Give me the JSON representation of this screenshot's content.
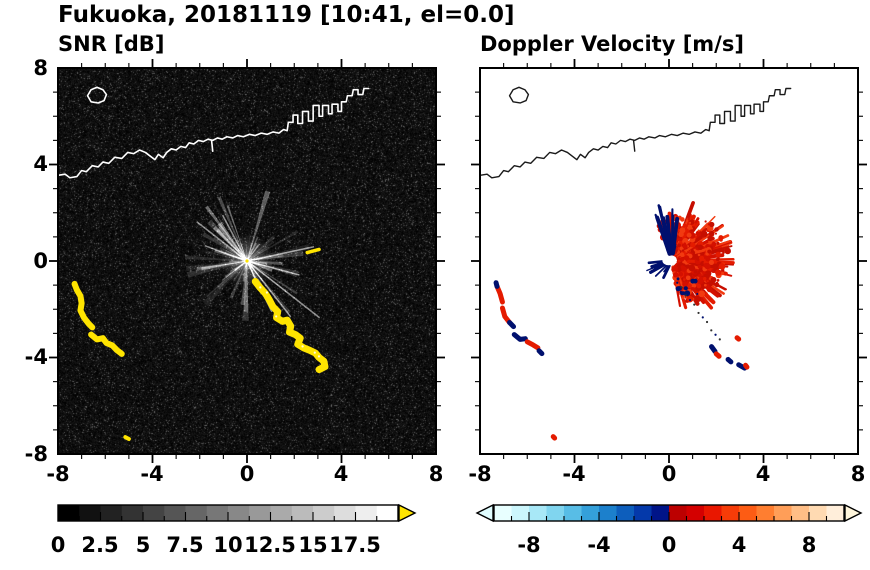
{
  "title": "Fukuoka, 20181119 [10:41, el=0.0]",
  "coastline": {
    "main": [
      [
        -8,
        3.55
      ],
      [
        -7.7,
        3.6
      ],
      [
        -7.5,
        3.45
      ],
      [
        -7.2,
        3.5
      ],
      [
        -7.0,
        3.75
      ],
      [
        -6.8,
        3.7
      ],
      [
        -6.55,
        3.95
      ],
      [
        -6.3,
        3.9
      ],
      [
        -6.1,
        4.1
      ],
      [
        -5.85,
        4.05
      ],
      [
        -5.6,
        4.3
      ],
      [
        -5.3,
        4.25
      ],
      [
        -5.05,
        4.5
      ],
      [
        -4.8,
        4.45
      ],
      [
        -4.55,
        4.6
      ],
      [
        -4.3,
        4.5
      ],
      [
        -4.1,
        4.35
      ],
      [
        -3.9,
        4.2
      ],
      [
        -3.75,
        4.42
      ],
      [
        -3.55,
        4.28
      ],
      [
        -3.4,
        4.5
      ],
      [
        -3.2,
        4.65
      ],
      [
        -3.0,
        4.6
      ],
      [
        -2.8,
        4.75
      ],
      [
        -2.6,
        4.7
      ],
      [
        -2.45,
        4.9
      ],
      [
        -2.25,
        4.85
      ],
      [
        -2.05,
        5.0
      ],
      [
        -1.85,
        4.95
      ],
      [
        -1.65,
        5.05
      ],
      [
        -1.45,
        5.0
      ],
      [
        -1.25,
        5.1
      ],
      [
        -1.05,
        5.05
      ],
      [
        -0.85,
        5.15
      ],
      [
        -0.6,
        5.1
      ],
      [
        -0.4,
        5.2
      ],
      [
        -0.15,
        5.15
      ],
      [
        0.1,
        5.25
      ],
      [
        0.35,
        5.2
      ],
      [
        0.6,
        5.3
      ],
      [
        0.85,
        5.25
      ],
      [
        1.1,
        5.35
      ],
      [
        1.35,
        5.3
      ],
      [
        1.55,
        5.45
      ],
      [
        1.7,
        5.4
      ],
      [
        1.75,
        5.75
      ],
      [
        1.95,
        5.75
      ],
      [
        1.95,
        6.05
      ],
      [
        2.15,
        6.05
      ],
      [
        2.15,
        5.7
      ],
      [
        2.35,
        5.7
      ],
      [
        2.35,
        6.2
      ],
      [
        2.6,
        6.2
      ],
      [
        2.6,
        5.8
      ],
      [
        2.8,
        5.8
      ],
      [
        2.8,
        6.45
      ],
      [
        3.05,
        6.45
      ],
      [
        3.05,
        6.0
      ],
      [
        3.2,
        6.0
      ],
      [
        3.2,
        6.45
      ],
      [
        3.45,
        6.45
      ],
      [
        3.45,
        6.1
      ],
      [
        3.6,
        6.1
      ],
      [
        3.6,
        6.5
      ],
      [
        3.85,
        6.5
      ],
      [
        3.85,
        6.2
      ],
      [
        4.0,
        6.2
      ],
      [
        4.0,
        6.6
      ],
      [
        4.2,
        6.6
      ],
      [
        4.25,
        6.85
      ],
      [
        4.45,
        6.85
      ],
      [
        4.5,
        7.1
      ],
      [
        4.7,
        7.1
      ],
      [
        4.7,
        6.9
      ],
      [
        4.9,
        6.9
      ],
      [
        4.95,
        7.15
      ],
      [
        5.15,
        7.15
      ]
    ],
    "island": [
      [
        -6.75,
        6.85
      ],
      [
        -6.6,
        7.1
      ],
      [
        -6.35,
        7.2
      ],
      [
        -6.1,
        7.1
      ],
      [
        -5.95,
        6.9
      ],
      [
        -6.05,
        6.65
      ],
      [
        -6.3,
        6.55
      ],
      [
        -6.6,
        6.6
      ]
    ],
    "stub": [
      [
        -1.5,
        5.0
      ],
      [
        -1.45,
        4.55
      ]
    ]
  },
  "chart_data": [
    {
      "type": "heatmap",
      "panel": "left",
      "title": "SNR [dB]",
      "units": "dB",
      "xlim": [
        -8,
        8
      ],
      "ylim": [
        -8,
        8
      ],
      "xticks": [
        -8,
        -4,
        0,
        4,
        8
      ],
      "yticks": [
        -8,
        -4,
        0,
        4,
        8
      ],
      "minor_tick": 1,
      "background": "#000000",
      "radar_center": [
        0,
        0
      ],
      "echo_features": {
        "yellow": "#ffe400",
        "arcs": [
          {
            "w": 6,
            "points": [
              [
                -7.3,
                -0.95
              ],
              [
                -7.2,
                -1.2
              ],
              [
                -7.05,
                -1.45
              ],
              [
                -7.0,
                -1.75
              ],
              [
                -7.05,
                -2.05
              ],
              [
                -6.9,
                -2.35
              ],
              [
                -6.7,
                -2.6
              ],
              [
                -6.55,
                -2.75
              ]
            ]
          },
          {
            "w": 6,
            "points": [
              [
                -6.6,
                -3.05
              ],
              [
                -6.35,
                -3.25
              ],
              [
                -6.1,
                -3.2
              ],
              [
                -5.95,
                -3.4
              ],
              [
                -5.7,
                -3.5
              ],
              [
                -5.5,
                -3.7
              ],
              [
                -5.3,
                -3.85
              ]
            ]
          },
          {
            "w": 7,
            "points": [
              [
                0.35,
                -0.85
              ],
              [
                0.55,
                -1.1
              ],
              [
                0.78,
                -1.35
              ],
              [
                0.95,
                -1.62
              ],
              [
                1.1,
                -1.9
              ],
              [
                1.3,
                -2.1
              ],
              [
                1.25,
                -2.35
              ],
              [
                1.5,
                -2.5
              ],
              [
                1.7,
                -2.45
              ],
              [
                1.85,
                -2.7
              ],
              [
                1.8,
                -2.95
              ],
              [
                2.05,
                -3.05
              ],
              [
                2.25,
                -3.2
              ],
              [
                2.15,
                -3.45
              ],
              [
                2.4,
                -3.6
              ],
              [
                2.65,
                -3.7
              ],
              [
                2.9,
                -3.82
              ],
              [
                3.05,
                -4.0
              ],
              [
                3.25,
                -4.15
              ],
              [
                3.3,
                -4.38
              ],
              [
                3.05,
                -4.5
              ]
            ]
          },
          {
            "w": 3.5,
            "points": [
              [
                2.55,
                0.35
              ],
              [
                3.05,
                0.48
              ]
            ]
          },
          {
            "w": 4,
            "points": [
              [
                -5.15,
                -7.3
              ],
              [
                -5.0,
                -7.38
              ]
            ]
          }
        ]
      },
      "colorbar": {
        "range": [
          0,
          20
        ],
        "ticks": [
          0,
          2.5,
          5,
          7.5,
          10,
          12.5,
          15,
          17.5
        ],
        "minor_step": 1.25,
        "colors": "grayscale",
        "segments": 16,
        "over_arrow": "#ffe400"
      }
    },
    {
      "type": "heatmap",
      "panel": "right",
      "title": "Doppler Velocity [m/s]",
      "units": "m/s",
      "xlim": [
        -8,
        8
      ],
      "ylim": [
        -8,
        8
      ],
      "xticks": [
        -8,
        -4,
        0,
        4,
        8
      ],
      "yticks": [
        -8,
        -4,
        0,
        4,
        8
      ],
      "minor_tick": 1,
      "background": "#ffffff",
      "radar_center": [
        0,
        0
      ],
      "echo_features": {
        "positive_color": "#e41b00",
        "negative_color": "#00106e",
        "red_mass_center": [
          0.9,
          -0.2
        ],
        "features": [
          {
            "color": "red",
            "points": [
              [
                -7.28,
                -1.05
              ],
              [
                -7.15,
                -1.35
              ],
              [
                -7.05,
                -1.7
              ]
            ]
          },
          {
            "color": "navy",
            "points": [
              [
                -7.32,
                -0.9
              ],
              [
                -7.28,
                -1.05
              ]
            ]
          },
          {
            "color": "red",
            "points": [
              [
                -7.05,
                -1.95
              ],
              [
                -6.95,
                -2.3
              ],
              [
                -6.75,
                -2.55
              ]
            ]
          },
          {
            "color": "navy",
            "points": [
              [
                -6.75,
                -2.55
              ],
              [
                -6.58,
                -2.72
              ]
            ]
          },
          {
            "color": "navy",
            "points": [
              [
                -6.55,
                -3.05
              ],
              [
                -6.3,
                -3.25
              ],
              [
                -6.08,
                -3.22
              ]
            ]
          },
          {
            "color": "red",
            "points": [
              [
                -6.0,
                -3.35
              ],
              [
                -5.75,
                -3.48
              ],
              [
                -5.55,
                -3.6
              ]
            ]
          },
          {
            "color": "navy",
            "points": [
              [
                -5.5,
                -3.72
              ],
              [
                -5.38,
                -3.84
              ]
            ]
          },
          {
            "color": "navy",
            "points": [
              [
                1.8,
                -3.55
              ],
              [
                1.95,
                -3.75
              ]
            ]
          },
          {
            "color": "red",
            "points": [
              [
                2.0,
                -3.85
              ],
              [
                2.12,
                -3.95
              ]
            ]
          },
          {
            "color": "navy",
            "points": [
              [
                2.5,
                -4.08
              ],
              [
                2.62,
                -4.18
              ]
            ]
          },
          {
            "color": "navy",
            "points": [
              [
                2.95,
                -4.3
              ],
              [
                3.2,
                -4.44
              ]
            ]
          },
          {
            "color": "red",
            "points": [
              [
                3.24,
                -4.32
              ],
              [
                3.3,
                -4.4
              ]
            ]
          },
          {
            "color": "red",
            "points": [
              [
                2.88,
                -3.18
              ],
              [
                2.95,
                -3.24
              ]
            ]
          },
          {
            "color": "red",
            "points": [
              [
                -4.9,
                -7.28
              ],
              [
                -4.84,
                -7.34
              ]
            ]
          }
        ]
      },
      "colorbar": {
        "range": [
          -10,
          10
        ],
        "ticks": [
          -8,
          -4,
          0,
          4,
          8
        ],
        "minor_step": 1,
        "colors": [
          "#e8ffff",
          "#ccf6fc",
          "#a8e8f7",
          "#80d5ef",
          "#58bde6",
          "#34a0da",
          "#1c80cc",
          "#0d5ebc",
          "#0439aa",
          "#001488",
          "#bc0000",
          "#d40000",
          "#e91700",
          "#f63c08",
          "#fd5c14",
          "#ff7e30",
          "#ff9e58",
          "#ffbe86",
          "#ffdab2",
          "#ffeeda"
        ],
        "under_arrow": "#e0fdff",
        "over_arrow": "#fff6dc"
      }
    }
  ]
}
